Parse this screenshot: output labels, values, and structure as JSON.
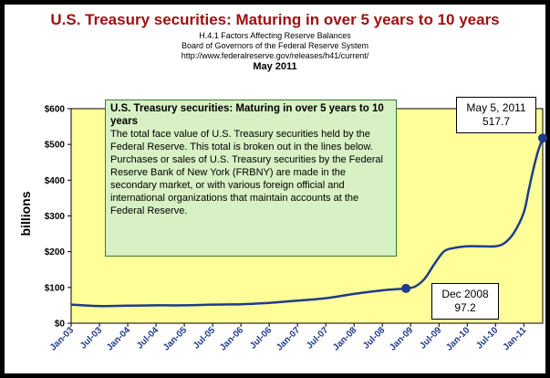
{
  "header": {
    "title": "U.S. Treasury securities: Maturing in over 5 years to 10 years",
    "subtitle_1": "H.4.1 Factors Affecting Reserve Balances",
    "subtitle_2": "Board of Governors of the Federal Reserve System",
    "subtitle_3": "http://www.federalreserve.gov/releases/h41/current/",
    "date": "May 2011"
  },
  "note": {
    "title": "U.S. Treasury securities: Maturing in over 5 years to 10 years",
    "body": "The total face value of U.S. Treasury securities held by the Federal Reserve.  This total is broken out in the lines below.  Purchases or sales of U.S. Treasury securities by the Federal Reserve Bank of New York (FRBNY) are made in the secondary market, or with various foreign official and international organizations that maintain accounts at the Federal Reserve."
  },
  "colors": {
    "plot_background": "#ffff99",
    "line": "#1f3b8c",
    "note_background": "#d7f0c4",
    "title": "#a01010"
  },
  "chart_data": {
    "type": "line",
    "title": "U.S. Treasury securities: Maturing in over 5 years to 10 years",
    "ylabel": "billions",
    "xlabel": "",
    "ylim": [
      0,
      600
    ],
    "yticks": [
      0,
      100,
      200,
      300,
      400,
      500,
      600
    ],
    "ytick_labels": [
      "$0",
      "$100",
      "$200",
      "$300",
      "$400",
      "$500",
      "$600"
    ],
    "xlim": [
      "2003-01",
      "2011-05"
    ],
    "x_tick_labels": [
      "Jan-03",
      "Jul-03",
      "Jan-04",
      "Jul-04",
      "Jan-05",
      "Jul-05",
      "Jan-06",
      "Jul-06",
      "Jan-07",
      "Jul-07",
      "Jan-08",
      "Jul-08",
      "Jan-09",
      "Jul-09",
      "Jan-10",
      "Jul-10",
      "Jan-11"
    ],
    "grid": false,
    "series": [
      {
        "x": [
          "2003-01",
          "2003-07",
          "2004-01",
          "2004-07",
          "2005-01",
          "2005-07",
          "2006-01",
          "2006-07",
          "2007-01",
          "2007-07",
          "2008-01",
          "2008-07",
          "2008-12",
          "2009-02",
          "2009-04",
          "2009-06",
          "2009-08",
          "2009-10",
          "2010-01",
          "2010-04",
          "2010-07",
          "2010-09",
          "2010-11",
          "2011-01",
          "2011-02",
          "2011-03",
          "2011-04",
          "2011-05"
        ],
        "values": [
          52,
          48,
          49,
          50,
          50,
          52,
          53,
          57,
          63,
          70,
          82,
          92,
          97.2,
          103,
          125,
          165,
          200,
          210,
          215,
          215,
          215,
          225,
          255,
          310,
          370,
          430,
          480,
          517.7
        ]
      }
    ],
    "annotations": [
      {
        "x": "2011-05",
        "y": 517.7,
        "label": "May 5, 2011",
        "value_label": "517.7"
      },
      {
        "x": "2008-12",
        "y": 97.2,
        "label": "Dec 2008",
        "value_label": "97.2"
      }
    ]
  }
}
